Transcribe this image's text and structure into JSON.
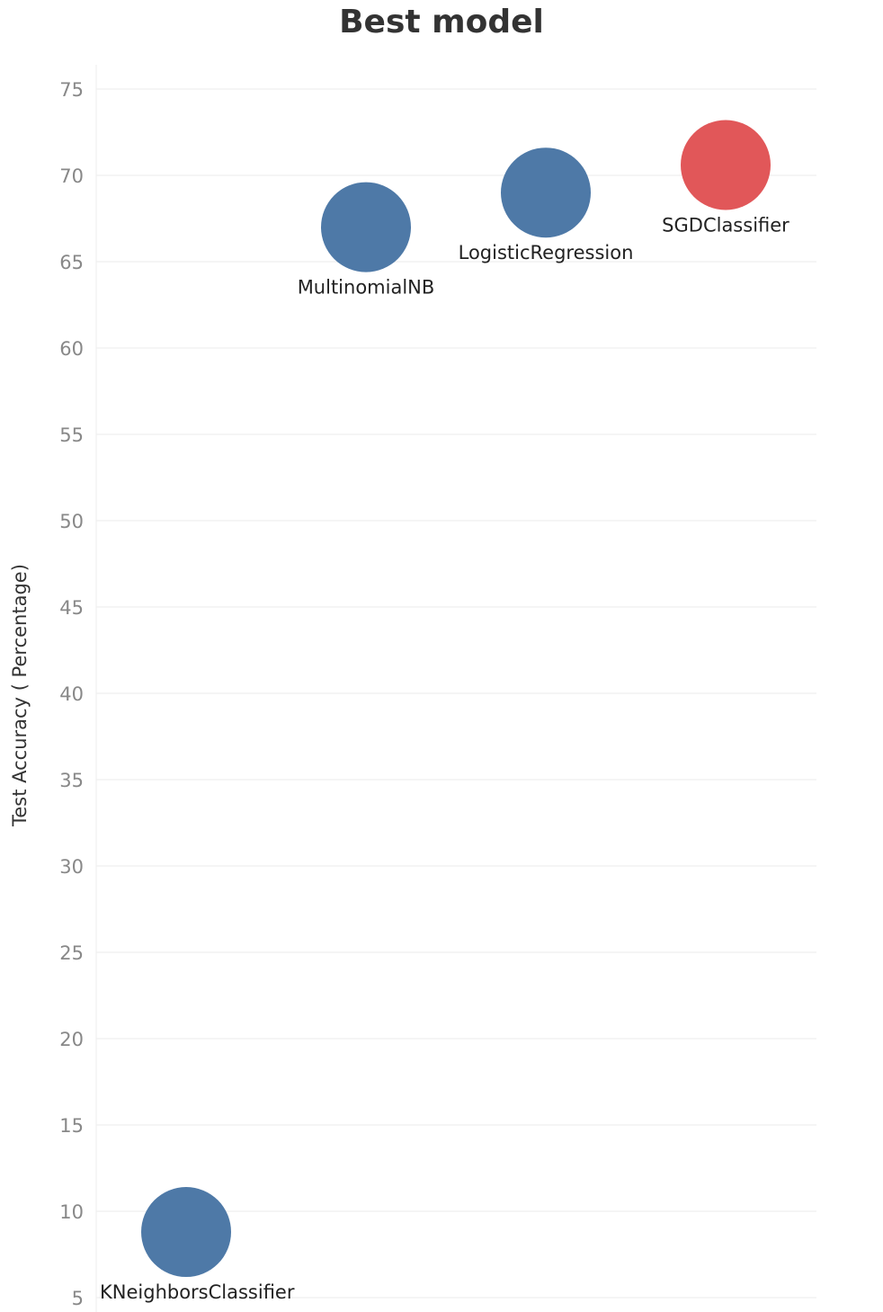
{
  "chart_data": {
    "type": "scatter",
    "title": "Best model",
    "xlabel": "",
    "ylabel": "Test Accuracy ( Percentage)",
    "ylim": [
      5,
      76
    ],
    "yticks": [
      5,
      10,
      15,
      20,
      25,
      30,
      35,
      40,
      45,
      50,
      55,
      60,
      65,
      70,
      75
    ],
    "grid": true,
    "points": [
      {
        "label": "KNeighborsClassifier",
        "y": 8.8,
        "color": "#4e79a7"
      },
      {
        "label": "MultinomialNB",
        "y": 67.0,
        "color": "#4e79a7"
      },
      {
        "label": "LogisticRegression",
        "y": 69.0,
        "color": "#4e79a7"
      },
      {
        "label": "SGDClassifier",
        "y": 70.6,
        "color": "#e15759"
      }
    ]
  }
}
